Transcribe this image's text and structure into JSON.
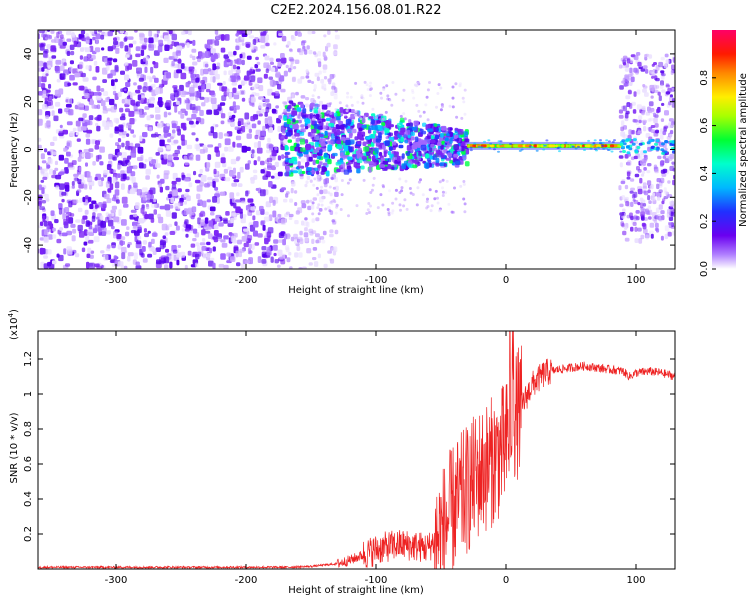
{
  "title": "C2E2.2024.156.08.01.R22",
  "chart_data": [
    {
      "type": "heatmap",
      "xlabel": "Height of straight line (km)",
      "ylabel": "Frequency (Hz)",
      "xlim": [
        -360,
        130
      ],
      "ylim": [
        -50,
        50
      ],
      "xticks": [
        -300,
        -200,
        -100,
        0,
        100
      ],
      "yticks": [
        -40,
        -20,
        0,
        20,
        40
      ],
      "colorbar": {
        "label": "Normalized spectral amplitude",
        "range": [
          0,
          1
        ],
        "ticks": [
          "0.0",
          "0.2",
          "0.4",
          "0.6",
          "0.8"
        ],
        "colormap": [
          "#ffffff",
          "#a066ff",
          "#5500ee",
          "#2233ff",
          "#00ccff",
          "#00ff44",
          "#ffff00",
          "#ff8800",
          "#ff0000",
          "#ff0066"
        ]
      },
      "regions": [
        {
          "x": [
            -360,
            -170
          ],
          "y": [
            -50,
            50
          ],
          "amplitude": 0.15,
          "description": "broadband noise"
        },
        {
          "x": [
            -170,
            -135
          ],
          "y": [
            -50,
            50
          ],
          "amplitude": 0.1,
          "description": "sparse noise"
        },
        {
          "x": [
            -170,
            -30
          ],
          "y": [
            -12,
            18
          ],
          "amplitude": 0.35,
          "description": "signal onset"
        },
        {
          "x": [
            -30,
            88
          ],
          "y": [
            -2,
            3
          ],
          "amplitude": 0.9,
          "description": "carrier line near 0 Hz"
        },
        {
          "x": [
            88,
            130
          ],
          "y": [
            -38,
            40
          ],
          "amplitude": 0.15,
          "description": "noise band"
        }
      ]
    },
    {
      "type": "line",
      "xlabel": "Height of straight line (km)",
      "ylabel": "SNR (10 * v/v)",
      "y_scale_label": "(x10",
      "y_scale_exp": "4",
      "y_scale_close": ")",
      "xlim": [
        -360,
        130
      ],
      "ylim": [
        0,
        1.36
      ],
      "xticks": [
        -300,
        -200,
        -100,
        0,
        100
      ],
      "yticks": [
        0.2,
        0.4,
        0.6,
        0.8,
        1.0,
        1.2
      ],
      "series": [
        {
          "color": "#ee2222",
          "x": [
            -360,
            -300,
            -250,
            -200,
            -170,
            -150,
            -130,
            -120,
            -110,
            -100,
            -90,
            -80,
            -70,
            -60,
            -50,
            -40,
            -30,
            -20,
            -10,
            0,
            5,
            10,
            20,
            30,
            40,
            50,
            60,
            70,
            80,
            90,
            95,
            100,
            110,
            120,
            130
          ],
          "y": [
            0.01,
            0.01,
            0.01,
            0.01,
            0.01,
            0.015,
            0.03,
            0.05,
            0.08,
            0.11,
            0.13,
            0.14,
            0.13,
            0.12,
            0.2,
            0.35,
            0.45,
            0.55,
            0.62,
            0.7,
            0.85,
            0.9,
            1.05,
            1.12,
            1.14,
            1.15,
            1.16,
            1.15,
            1.14,
            1.13,
            1.1,
            1.12,
            1.13,
            1.12,
            1.1
          ]
        }
      ]
    }
  ]
}
